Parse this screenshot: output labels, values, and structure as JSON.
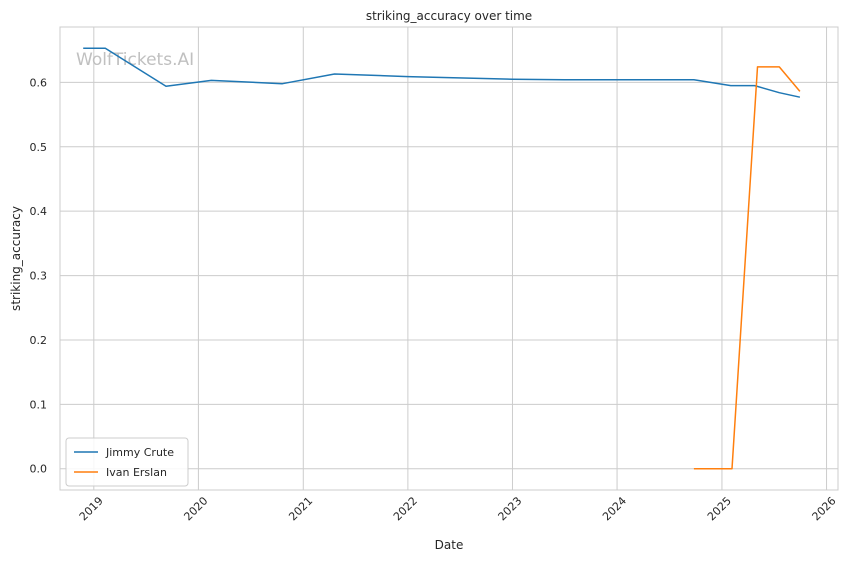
{
  "chart_data": {
    "type": "line",
    "title": "striking_accuracy over time",
    "xlabel": "Date",
    "ylabel": "striking_accuracy",
    "watermark": "WolfTickets.AI",
    "grid": true,
    "legend_position": "lower-left",
    "x_type": "date",
    "xlim": [
      "2018-09-05",
      "2026-02-10"
    ],
    "ylim": [
      -0.033,
      0.686
    ],
    "x_ticks": [
      {
        "date": "2019-01-01",
        "label": "2019"
      },
      {
        "date": "2020-01-01",
        "label": "2020"
      },
      {
        "date": "2021-01-01",
        "label": "2021"
      },
      {
        "date": "2022-01-01",
        "label": "2022"
      },
      {
        "date": "2023-01-01",
        "label": "2023"
      },
      {
        "date": "2024-01-01",
        "label": "2024"
      },
      {
        "date": "2025-01-01",
        "label": "2025"
      },
      {
        "date": "2026-01-01",
        "label": "2026"
      }
    ],
    "y_ticks": [
      {
        "value": 0.0,
        "label": "0.0"
      },
      {
        "value": 0.1,
        "label": "0.1"
      },
      {
        "value": 0.2,
        "label": "0.2"
      },
      {
        "value": 0.3,
        "label": "0.3"
      },
      {
        "value": 0.4,
        "label": "0.4"
      },
      {
        "value": 0.5,
        "label": "0.5"
      },
      {
        "value": 0.6,
        "label": "0.6"
      }
    ],
    "series": [
      {
        "name": "Jimmy Crute",
        "color": "#1f77b4",
        "points": [
          {
            "x": "2018-11-25",
            "y": 0.653
          },
          {
            "x": "2019-02-10",
            "y": 0.653
          },
          {
            "x": "2019-09-10",
            "y": 0.594
          },
          {
            "x": "2020-02-15",
            "y": 0.603
          },
          {
            "x": "2020-10-20",
            "y": 0.598
          },
          {
            "x": "2021-04-20",
            "y": 0.613
          },
          {
            "x": "2022-01-01",
            "y": 0.609
          },
          {
            "x": "2023-01-01",
            "y": 0.605
          },
          {
            "x": "2023-07-01",
            "y": 0.604
          },
          {
            "x": "2024-09-25",
            "y": 0.604
          },
          {
            "x": "2025-02-01",
            "y": 0.595
          },
          {
            "x": "2025-04-25",
            "y": 0.595
          },
          {
            "x": "2025-07-20",
            "y": 0.584
          },
          {
            "x": "2025-09-30",
            "y": 0.577
          }
        ]
      },
      {
        "name": "Ivan Erslan",
        "color": "#ff7f0e",
        "points": [
          {
            "x": "2024-09-25",
            "y": 0.0
          },
          {
            "x": "2025-02-05",
            "y": 0.0
          },
          {
            "x": "2025-05-05",
            "y": 0.624
          },
          {
            "x": "2025-07-20",
            "y": 0.624
          },
          {
            "x": "2025-09-30",
            "y": 0.586
          }
        ]
      }
    ]
  }
}
